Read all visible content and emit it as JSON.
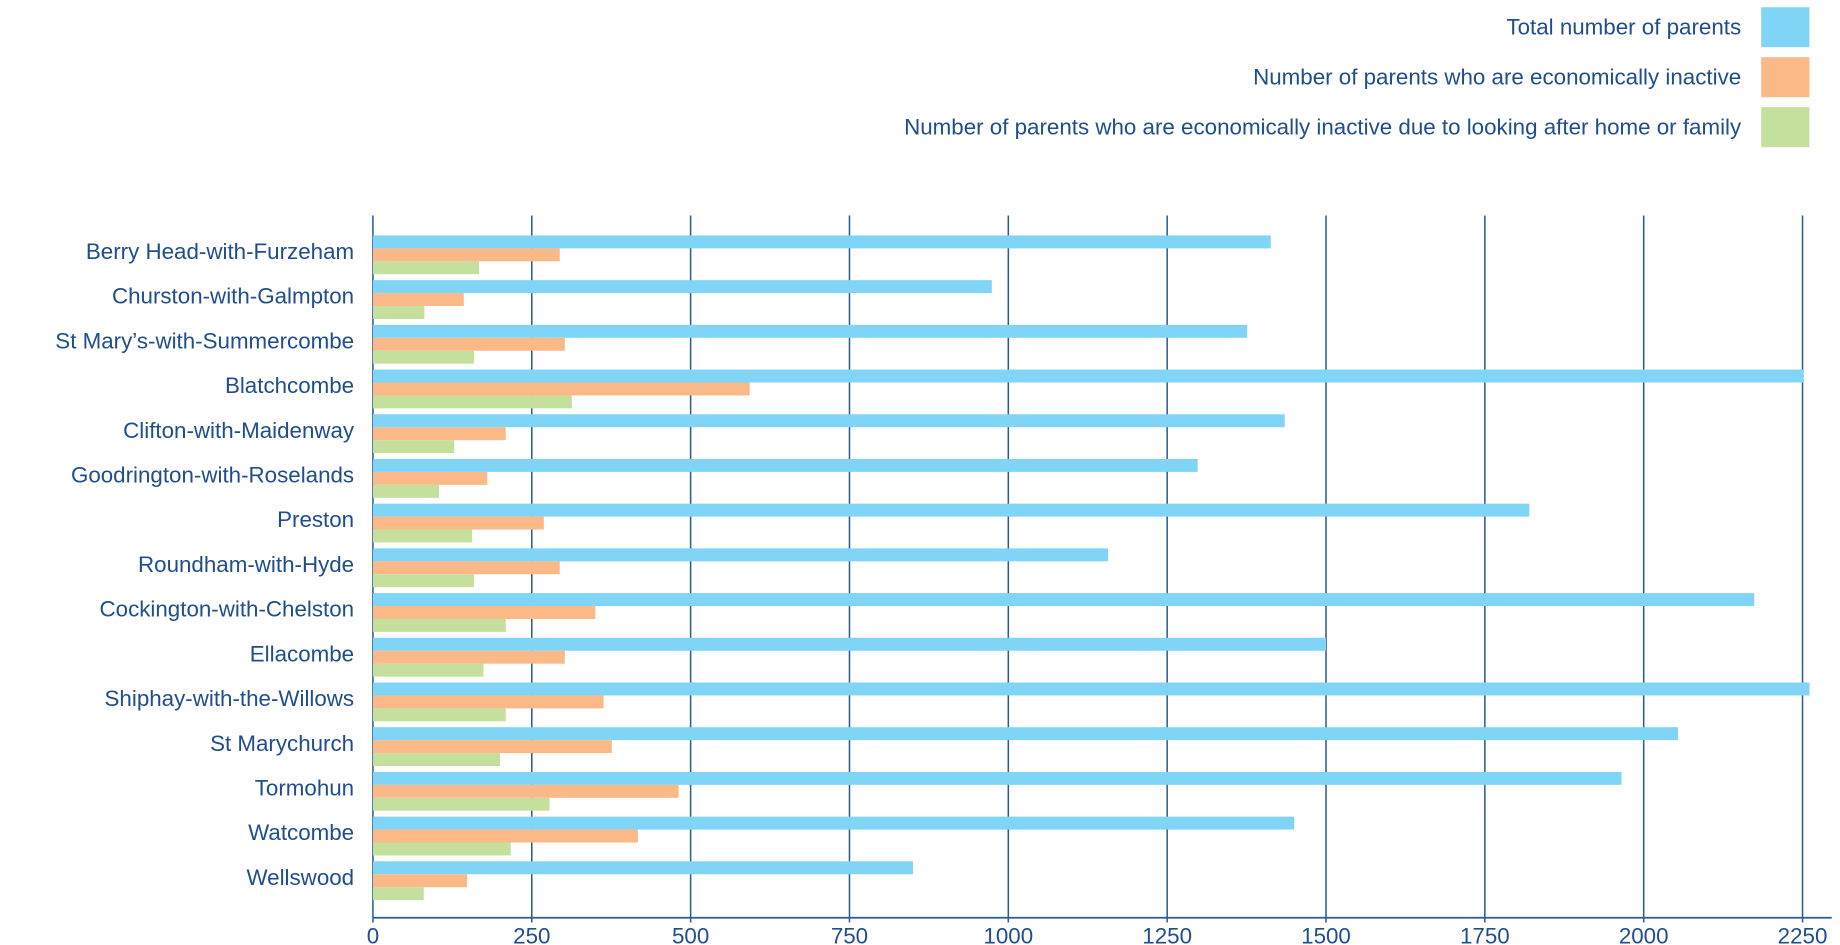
{
  "chart_data": {
    "type": "bar",
    "orientation": "horizontal",
    "legend": "top-right",
    "grid": true,
    "categories": [
      "Berry Head-with-Furzeham",
      "Churston-with-Galmpton",
      "St Mary’s-with-Summercombe",
      "Blatchcombe",
      "Clifton-with-Maidenway",
      "Goodrington-with-Roselands",
      "Preston",
      "Roundham-with-Hyde",
      "Cockington-with-Chelston",
      "Ellacombe",
      "Shiphay-with-the-Willows",
      "St Marychurch",
      "Tormohun",
      "Watcombe",
      "Wellswood"
    ],
    "series": [
      {
        "name": "Total number of parents",
        "color": "#80d4f5",
        "values": [
          1413,
          974,
          1376,
          2252,
          1435,
          1298,
          1820,
          1157,
          2174,
          1500,
          2261,
          2054,
          1965,
          1450,
          850
        ]
      },
      {
        "name": "Number of parents who are economically inactive",
        "color": "#fbb987",
        "values": [
          294,
          143,
          302,
          593,
          209,
          180,
          269,
          294,
          350,
          302,
          363,
          376,
          481,
          417,
          148
        ]
      },
      {
        "name": "Number of parents who are economically inactive due to looking after home or family",
        "color": "#c5e09c",
        "values": [
          167,
          81,
          159,
          313,
          128,
          104,
          156,
          159,
          209,
          174,
          209,
          200,
          278,
          217,
          80
        ]
      }
    ],
    "xlim": [
      0,
      2296
    ],
    "xticks": [
      0,
      250,
      500,
      750,
      1000,
      1250,
      1500,
      1750,
      2000,
      2250
    ]
  }
}
